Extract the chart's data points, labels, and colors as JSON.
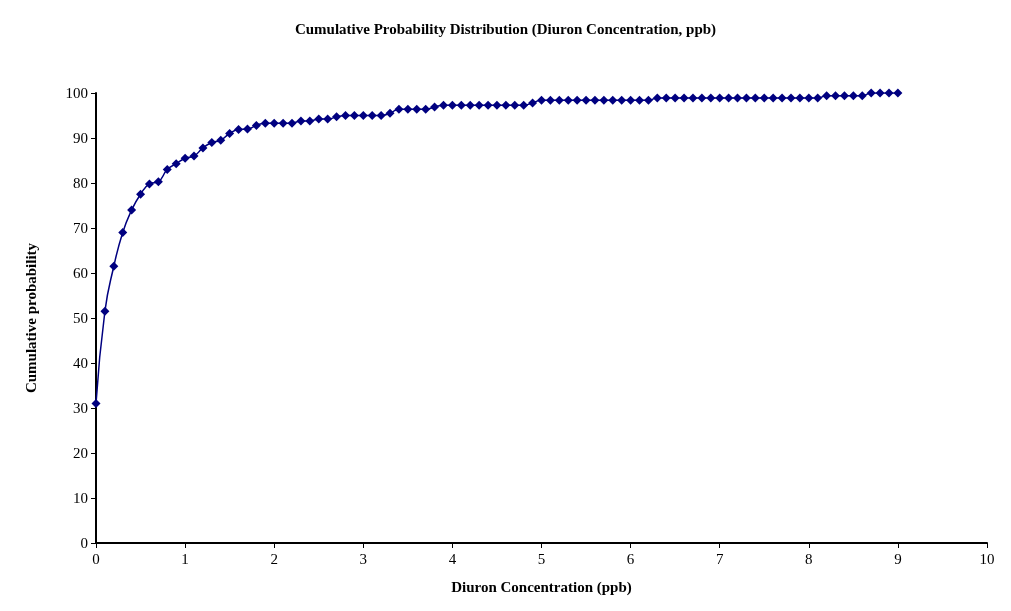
{
  "chart_data": {
    "type": "line",
    "title": "Cumulative Probability Distribution (Diuron Concentration, ppb)",
    "xlabel": "Diuron Concentration (ppb)",
    "ylabel": "Cumulative probability",
    "x": [
      0,
      0.1,
      0.2,
      0.3,
      0.4,
      0.5,
      0.6,
      0.7,
      0.8,
      0.9,
      1,
      1.1,
      1.2,
      1.3,
      1.4,
      1.5,
      1.6,
      1.7,
      1.8,
      1.9,
      2,
      2.1,
      2.2,
      2.3,
      2.4,
      2.5,
      2.6,
      2.7,
      2.8,
      2.9,
      3,
      3.1,
      3.2,
      3.3,
      3.4,
      3.5,
      3.6,
      3.7,
      3.8,
      3.9,
      4,
      4.1,
      4.2,
      4.3,
      4.4,
      4.5,
      4.6,
      4.7,
      4.8,
      4.9,
      5,
      5.1,
      5.2,
      5.3,
      5.4,
      5.5,
      5.6,
      5.7,
      5.8,
      5.9,
      6,
      6.1,
      6.2,
      6.3,
      6.4,
      6.5,
      6.6,
      6.7,
      6.8,
      6.9,
      7,
      7.1,
      7.2,
      7.3,
      7.4,
      7.5,
      7.6,
      7.7,
      7.8,
      7.9,
      8,
      8.1,
      8.2,
      8.3,
      8.4,
      8.5,
      8.6,
      8.7,
      8.8,
      8.9,
      9
    ],
    "series": [
      {
        "color": "#000080",
        "values": [
          31,
          51.5,
          61.5,
          69,
          74,
          77.5,
          79.8,
          80.3,
          83,
          84.3,
          85.5,
          86,
          87.8,
          89,
          89.5,
          91,
          91.9,
          92,
          92.8,
          93.3,
          93.3,
          93.3,
          93.3,
          93.8,
          93.8,
          94.2,
          94.2,
          94.7,
          95,
          95,
          95,
          95,
          95,
          95.5,
          96.4,
          96.4,
          96.4,
          96.4,
          96.9,
          97.3,
          97.3,
          97.3,
          97.3,
          97.3,
          97.3,
          97.3,
          97.3,
          97.3,
          97.3,
          97.8,
          98.4,
          98.4,
          98.4,
          98.4,
          98.4,
          98.4,
          98.4,
          98.4,
          98.4,
          98.4,
          98.4,
          98.4,
          98.4,
          98.9,
          98.9,
          98.9,
          98.9,
          98.9,
          98.9,
          98.9,
          98.9,
          98.9,
          98.9,
          98.9,
          98.9,
          98.9,
          98.9,
          98.9,
          98.9,
          98.9,
          98.9,
          98.9,
          99.4,
          99.4,
          99.4,
          99.4,
          99.4,
          100,
          100,
          100,
          100
        ]
      }
    ],
    "xlim": [
      0,
      10
    ],
    "xticks": [
      0,
      1,
      2,
      3,
      4,
      5,
      6,
      7,
      8,
      9,
      10
    ],
    "ylim": [
      0,
      100
    ],
    "yticks": [
      0,
      10,
      20,
      30,
      40,
      50,
      60,
      70,
      80,
      90,
      100
    ],
    "grid": false,
    "marker": "diamond",
    "line_style": "solid"
  }
}
